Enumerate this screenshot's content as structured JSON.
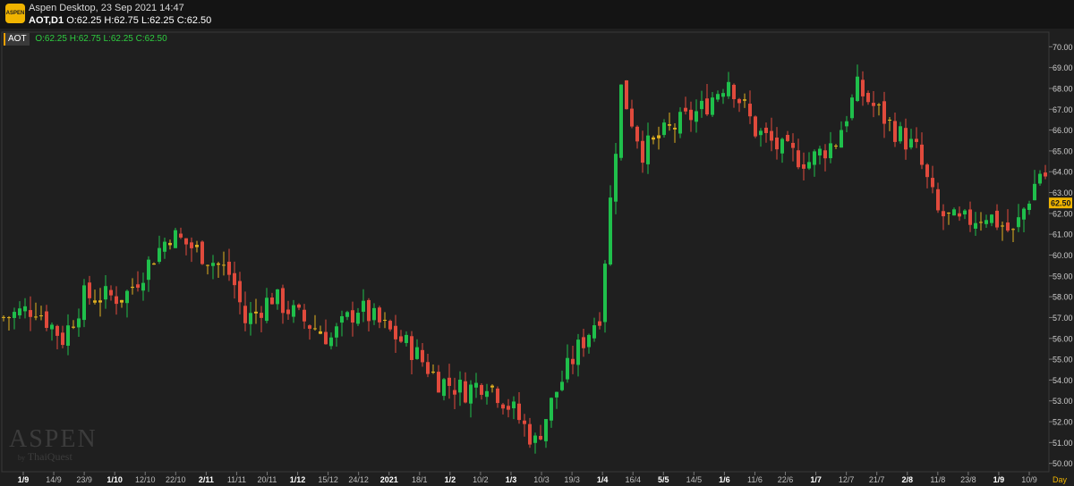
{
  "header": {
    "logo_text": "ASPEN",
    "title": "Aspen Desktop, 23 Sep 2021 14:47",
    "symbol_tf": "AOT,D1",
    "ohlc": "O:62.25 H:62.75 L:62.25 C:62.50"
  },
  "symbol_bar": {
    "symbol": "AOT",
    "ohlc": "O:62.25 H:62.75 L:62.25 C:62.50"
  },
  "watermark": {
    "main": "ASPEN",
    "by": "by",
    "brand": "ThaiQuest"
  },
  "colors": {
    "background": "#1f1f1f",
    "up": "#1fbf4b",
    "down": "#e04a3c",
    "doji": "#e0b020",
    "last_price": "#f0b400"
  },
  "chart_data": {
    "type": "candlestick",
    "symbol": "AOT",
    "timeframe": "D1",
    "ylim": [
      49.6,
      70.7
    ],
    "y_ticks": [
      "70.00",
      "69.00",
      "68.00",
      "67.00",
      "66.00",
      "65.00",
      "64.00",
      "63.00",
      "62.00",
      "61.00",
      "60.00",
      "59.00",
      "58.00",
      "57.00",
      "56.00",
      "55.00",
      "54.00",
      "53.00",
      "52.00",
      "51.00",
      "50.00"
    ],
    "x_ticks": [
      {
        "label": "1/9",
        "bold": true
      },
      {
        "label": "14/9"
      },
      {
        "label": "23/9"
      },
      {
        "label": "1/10",
        "bold": true
      },
      {
        "label": "12/10"
      },
      {
        "label": "22/10"
      },
      {
        "label": "2/11",
        "bold": true
      },
      {
        "label": "11/11"
      },
      {
        "label": "20/11"
      },
      {
        "label": "1/12",
        "bold": true
      },
      {
        "label": "15/12"
      },
      {
        "label": "24/12"
      },
      {
        "label": "2021",
        "bold": true
      },
      {
        "label": "18/1"
      },
      {
        "label": "1/2",
        "bold": true
      },
      {
        "label": "10/2"
      },
      {
        "label": "1/3",
        "bold": true
      },
      {
        "label": "10/3"
      },
      {
        "label": "19/3"
      },
      {
        "label": "1/4",
        "bold": true
      },
      {
        "label": "16/4"
      },
      {
        "label": "5/5",
        "bold": true
      },
      {
        "label": "14/5"
      },
      {
        "label": "1/6",
        "bold": true
      },
      {
        "label": "11/6"
      },
      {
        "label": "22/6"
      },
      {
        "label": "1/7",
        "bold": true
      },
      {
        "label": "12/7"
      },
      {
        "label": "21/7"
      },
      {
        "label": "2/8",
        "bold": true
      },
      {
        "label": "11/8"
      },
      {
        "label": "23/8"
      },
      {
        "label": "1/9",
        "bold": true
      },
      {
        "label": "10/9"
      }
    ],
    "x_axis_unit": "Day",
    "last_price": "62.50",
    "close_path": [
      [
        0,
        57
      ],
      [
        12,
        57.5
      ],
      [
        22,
        56
      ],
      [
        30,
        58
      ],
      [
        45,
        58
      ],
      [
        62,
        61
      ],
      [
        75,
        60
      ],
      [
        85,
        59
      ],
      [
        90,
        56.8
      ],
      [
        100,
        58
      ],
      [
        110,
        57
      ],
      [
        122,
        56
      ],
      [
        132,
        57.5
      ],
      [
        142,
        56.5
      ],
      [
        152,
        55.5
      ],
      [
        162,
        54
      ],
      [
        172,
        53.5
      ],
      [
        180,
        54
      ],
      [
        190,
        52.5
      ],
      [
        198,
        51
      ],
      [
        206,
        53.5
      ],
      [
        214,
        55.5
      ],
      [
        222,
        57.2
      ],
      [
        230,
        68
      ],
      [
        238,
        65
      ],
      [
        248,
        66
      ],
      [
        260,
        67
      ],
      [
        270,
        68.5
      ],
      [
        280,
        66
      ],
      [
        290,
        65
      ],
      [
        300,
        64.5
      ],
      [
        310,
        65.5
      ],
      [
        318,
        68
      ],
      [
        325,
        67
      ],
      [
        332,
        66
      ],
      [
        340,
        65
      ],
      [
        348,
        62
      ],
      [
        356,
        61.5
      ],
      [
        366,
        62
      ],
      [
        376,
        61
      ],
      [
        386,
        64
      ],
      [
        396,
        63
      ],
      [
        405,
        63.5
      ],
      [
        412,
        61
      ],
      [
        422,
        60.5
      ],
      [
        432,
        60
      ],
      [
        442,
        60.5
      ],
      [
        452,
        60
      ],
      [
        462,
        59.8
      ],
      [
        470,
        60
      ],
      [
        478,
        62
      ],
      [
        486,
        63
      ],
      [
        496,
        64.5
      ],
      [
        506,
        63
      ],
      [
        516,
        62.5
      ],
      [
        526,
        61.5
      ],
      [
        534,
        61
      ],
      [
        542,
        64
      ],
      [
        552,
        65
      ],
      [
        560,
        66
      ],
      [
        568,
        67
      ],
      [
        576,
        68
      ],
      [
        586,
        69.5
      ],
      [
        596,
        68.5
      ],
      [
        606,
        68
      ],
      [
        614,
        67.5
      ],
      [
        622,
        67
      ],
      [
        632,
        67.5
      ],
      [
        640,
        68
      ],
      [
        648,
        68.5
      ],
      [
        656,
        69
      ],
      [
        664,
        68.5
      ],
      [
        670,
        67
      ],
      [
        680,
        66.5
      ],
      [
        690,
        66
      ],
      [
        700,
        65.5
      ],
      [
        710,
        64
      ],
      [
        720,
        62
      ],
      [
        730,
        61
      ],
      [
        738,
        60.5
      ],
      [
        748,
        60.2
      ],
      [
        756,
        60
      ],
      [
        766,
        60.2
      ],
      [
        776,
        60.5
      ],
      [
        786,
        60.8
      ],
      [
        796,
        61.5
      ],
      [
        806,
        63
      ],
      [
        816,
        64.5
      ],
      [
        826,
        65
      ],
      [
        836,
        65
      ],
      [
        846,
        67
      ],
      [
        854,
        68
      ],
      [
        862,
        67
      ],
      [
        870,
        66
      ],
      [
        878,
        66
      ],
      [
        888,
        65
      ],
      [
        896,
        63
      ],
      [
        906,
        62.5
      ],
      [
        916,
        62
      ],
      [
        926,
        61.5
      ],
      [
        936,
        61
      ],
      [
        946,
        61.5
      ],
      [
        956,
        60.5
      ],
      [
        966,
        59.5
      ],
      [
        976,
        58
      ],
      [
        986,
        57
      ],
      [
        996,
        57
      ],
      [
        1006,
        56
      ],
      [
        1016,
        56.5
      ],
      [
        1026,
        57.5
      ],
      [
        1036,
        56.8
      ],
      [
        1046,
        57.5
      ],
      [
        1056,
        59
      ],
      [
        1066,
        61
      ],
      [
        1076,
        62.5
      ],
      [
        1086,
        63.2
      ],
      [
        1096,
        63
      ],
      [
        1106,
        63.2
      ],
      [
        1116,
        62.5
      ],
      [
        1126,
        61.5
      ],
      [
        1136,
        61.5
      ],
      [
        1146,
        62
      ],
      [
        1156,
        61.8
      ],
      [
        1166,
        62.5
      ]
    ]
  }
}
